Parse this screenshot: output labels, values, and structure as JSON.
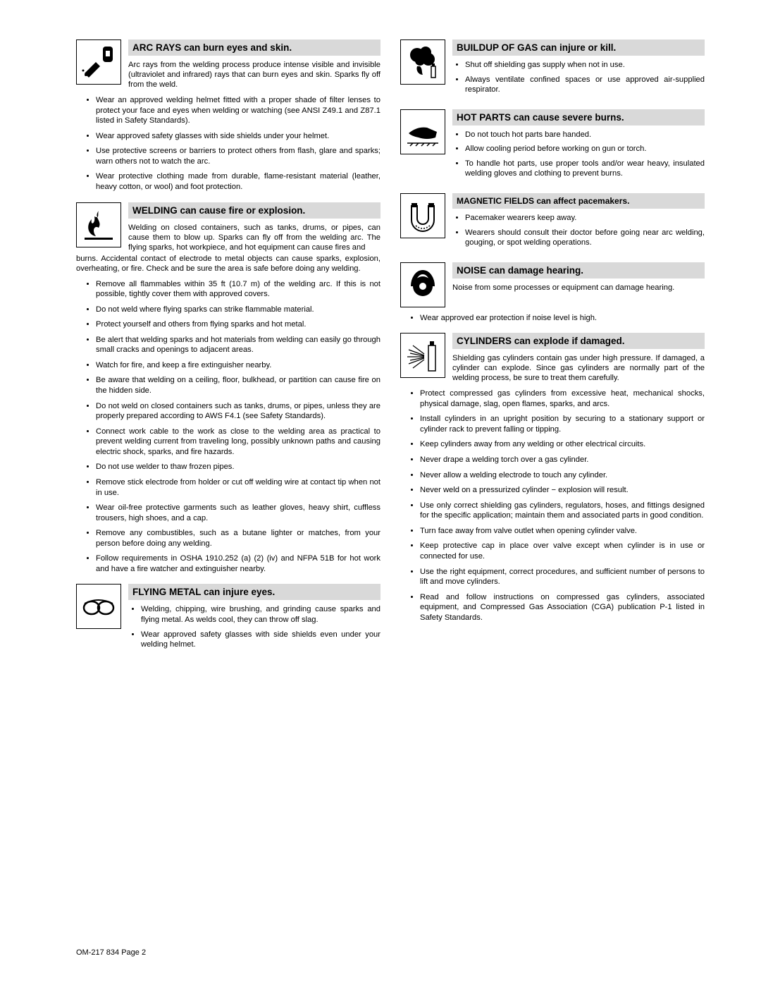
{
  "footer": "OM-217 834 Page 2",
  "left": [
    {
      "icon": "welder",
      "title": "ARC RAYS can burn eyes and skin.",
      "intro": "Arc rays from the welding process produce intense visible and invisible (ultraviolet and infrared) rays that can burn eyes and skin. Sparks fly off from the weld.",
      "intro_cont": "",
      "bullets": [
        "Wear an approved welding helmet fitted with a proper shade of filter lenses to protect your face and eyes when welding or watching (see ANSI Z49.1 and Z87.1 listed in Safety Standards).",
        "Wear approved safety glasses with side shields under your helmet.",
        "Use protective screens or barriers to protect others from flash, glare and sparks; warn others not to watch the arc.",
        "Wear protective clothing made from durable, flame-resistant material (leather, heavy cotton, or wool) and foot protection."
      ]
    },
    {
      "icon": "fire",
      "title": "WELDING can cause fire or explosion.",
      "intro": "Welding on closed containers, such as tanks, drums, or pipes, can cause them to blow up. Sparks can fly off from the welding arc. The flying sparks, hot workpiece, and hot equipment can cause fires and",
      "intro_cont": "burns. Accidental contact of electrode to metal objects can cause sparks, explosion, overheating, or fire. Check and be sure the area is safe before doing any welding.",
      "bullets": [
        "Remove all flammables within 35 ft (10.7 m) of the welding arc. If this is not possible, tightly cover them with approved covers.",
        "Do not weld where flying sparks can strike flammable material.",
        "Protect yourself and others from flying sparks and hot metal.",
        "Be alert that welding sparks and hot materials from welding can easily go through small cracks and openings to adjacent areas.",
        "Watch for fire, and keep a fire extinguisher nearby.",
        "Be aware that welding on a ceiling, floor, bulkhead, or partition can cause fire on the hidden side.",
        "Do not weld on closed containers such as tanks, drums, or pipes, unless they are properly prepared according to AWS F4.1 (see Safety Standards).",
        "Connect work cable to the work as close to the welding area as practical to prevent welding current from traveling long, possibly unknown paths and causing electric shock, sparks, and fire hazards.",
        "Do not use welder to thaw frozen pipes.",
        "Remove stick electrode from holder or cut off welding wire at contact tip when not in use.",
        "Wear oil-free protective garments such as leather gloves, heavy shirt, cuffless trousers, high shoes, and a cap.",
        "Remove any combustibles, such as a butane lighter or matches, from your person before doing any welding.",
        "Follow requirements in OSHA 1910.252 (a) (2) (iv) and NFPA 51B for hot work and have a fire watcher and extinguisher nearby."
      ]
    },
    {
      "icon": "goggles",
      "title": "FLYING METAL can injure eyes.",
      "intro": "",
      "intro_cont": "",
      "side_bullets": [
        "Welding, chipping, wire brushing, and grinding cause sparks and flying metal. As welds cool, they can throw off slag.",
        "Wear approved safety glasses with side shields even under your welding helmet."
      ],
      "bullets": []
    }
  ],
  "right": [
    {
      "icon": "gas",
      "title": "BUILDUP OF GAS can injure or kill.",
      "intro": "",
      "side_bullets": [
        "Shut off shielding gas supply when not in use.",
        "Always ventilate confined spaces or use approved air-supplied respirator."
      ],
      "bullets": []
    },
    {
      "icon": "hand",
      "title": "HOT PARTS can cause severe burns.",
      "intro": "",
      "side_bullets": [
        "Do not touch hot parts bare handed.",
        "Allow cooling period before working on gun or torch.",
        "To handle hot parts, use proper tools and/or wear heavy, insulated welding gloves and clothing to prevent burns."
      ],
      "bullets": []
    },
    {
      "icon": "magnet",
      "title_small": true,
      "title": "MAGNETIC FIELDS can affect pacemakers.",
      "intro": "",
      "side_bullets": [
        "Pacemaker wearers keep away.",
        "Wearers should consult their doctor before going near arc welding, gouging, or spot welding operations."
      ],
      "bullets": []
    },
    {
      "icon": "ear",
      "title": "NOISE can damage hearing.",
      "intro": "Noise from some processes or equipment can damage hearing.",
      "side_bullets": [],
      "bullets": [
        "Wear approved ear protection if noise level is high."
      ]
    },
    {
      "icon": "cylinder",
      "title": "CYLINDERS can explode if damaged.",
      "intro": "Shielding gas cylinders contain gas under high pressure. If damaged, a cylinder can explode. Since gas cylinders are normally part of the welding process, be sure to treat them carefully.",
      "side_bullets": [],
      "bullets": [
        "Protect compressed gas cylinders from excessive heat, mechanical shocks, physical damage, slag, open flames, sparks, and arcs.",
        "Install cylinders in an upright position by securing to a stationary support or cylinder rack to prevent falling or tipping.",
        "Keep cylinders away from any welding or other electrical circuits.",
        "Never drape a welding torch over a gas cylinder.",
        "Never allow a welding electrode to touch any cylinder.",
        "Never weld on a pressurized cylinder − explosion will result.",
        "Use only correct shielding gas cylinders, regulators, hoses, and fittings designed for the specific application; maintain them and associated parts in good condition.",
        "Turn face away from valve outlet when opening cylinder valve.",
        "Keep protective cap in place over valve except when cylinder is in use or connected for use.",
        "Use the right equipment, correct procedures, and sufficient number of persons to lift and move cylinders.",
        "Read and follow instructions on compressed gas cylinders, associated equipment, and Compressed Gas Association (CGA) publication P-1 listed in Safety Standards."
      ]
    }
  ]
}
